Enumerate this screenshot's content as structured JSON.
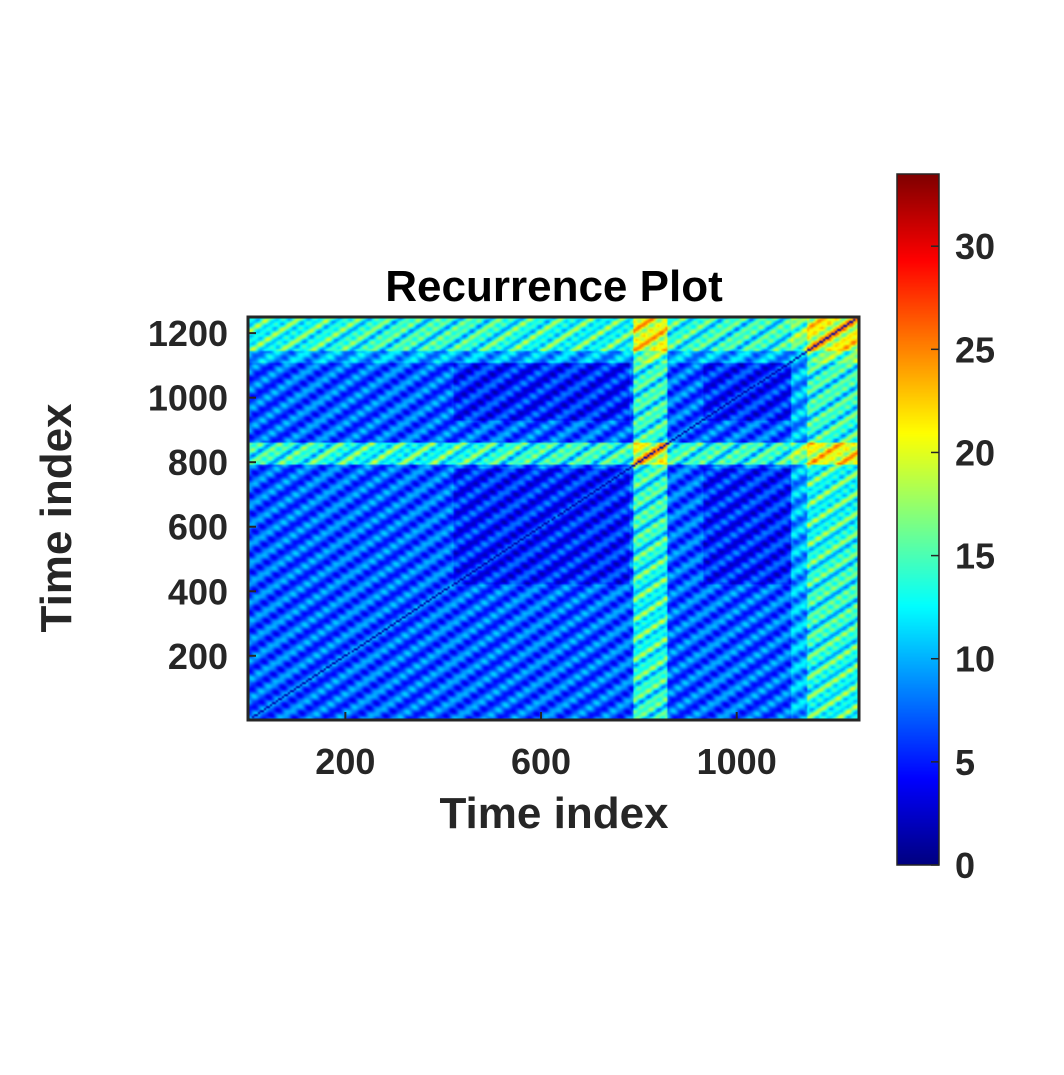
{
  "chart_data": {
    "type": "heatmap",
    "title": "Recurrence Plot",
    "xlabel": "Time index",
    "ylabel": "Time index",
    "xlim": [
      1,
      1250
    ],
    "ylim": [
      1,
      1250
    ],
    "xticks": [
      200,
      600,
      1000
    ],
    "yticks": [
      200,
      400,
      600,
      800,
      1000,
      1200
    ],
    "colorbar": {
      "colormap": "jet",
      "range": [
        0,
        33.5
      ],
      "ticks": [
        0,
        5,
        10,
        15,
        20,
        25,
        30
      ]
    },
    "features": {
      "bright_bands": [
        [
          790,
          860
        ],
        [
          1145,
          1250
        ]
      ],
      "medium_bands": [
        [
          1110,
          1145
        ]
      ],
      "dark_blocks": [
        [
          420,
          780
        ],
        [
          930,
          1110
        ]
      ],
      "diagonal_period": 60
    }
  }
}
